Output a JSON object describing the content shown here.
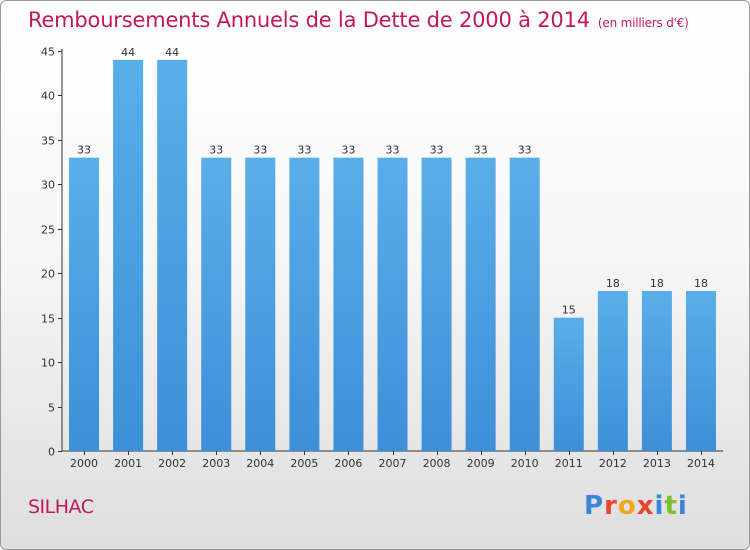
{
  "chart_data": {
    "type": "bar",
    "title": "Remboursements Annuels de la Dette de 2000 à 2014",
    "subtitle": "(en milliers d'€)",
    "categories": [
      "2000",
      "2001",
      "2002",
      "2003",
      "2004",
      "2005",
      "2006",
      "2007",
      "2008",
      "2009",
      "2010",
      "2011",
      "2012",
      "2013",
      "2014"
    ],
    "values": [
      33,
      44,
      44,
      33,
      33,
      33,
      33,
      33,
      33,
      33,
      33,
      15,
      18,
      18,
      18
    ],
    "ylim": [
      0,
      45
    ],
    "yticks": [
      0,
      5,
      10,
      15,
      20,
      25,
      30,
      35,
      40,
      45
    ],
    "xlabel": "",
    "ylabel": "",
    "grid": false,
    "data_labels": true,
    "bar_color": "#3d8fd8",
    "bar_color_light": "#5aaee8"
  },
  "location": "SILHAC",
  "logo": {
    "text": "Proxiti",
    "letter_colors": [
      "#3a86d6",
      "#e8452c",
      "#f1a81b",
      "#e8452c",
      "#3a86d6",
      "#7cbf2f",
      "#3a86d6"
    ]
  },
  "colors": {
    "title": "#c2185b",
    "axis": "#333333"
  }
}
